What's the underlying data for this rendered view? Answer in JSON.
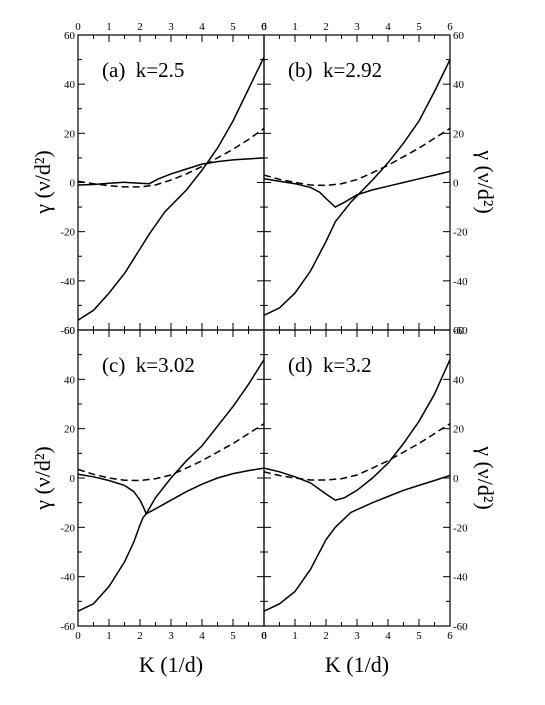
{
  "chart_data": [
    {
      "type": "line",
      "panel": "a",
      "label": "(a)  k=2.5",
      "xlabel": "",
      "ylabel": "γ  (ν/d²)",
      "xlim": [
        0,
        6
      ],
      "ylim": [
        -60,
        60
      ],
      "series": [
        {
          "style": "solid",
          "x": [
            0,
            0.5,
            1.0,
            1.5,
            2.0,
            2.3,
            2.8,
            3.5,
            4.0,
            4.5,
            5.0,
            6.0
          ],
          "y": [
            -56,
            -52,
            -45,
            -37,
            -27,
            -21,
            -12,
            -3,
            5,
            14,
            25,
            51
          ]
        },
        {
          "style": "solid",
          "x": [
            0,
            0.5,
            1.0,
            1.5,
            2.0,
            2.3,
            2.6,
            3.0,
            3.5,
            4.0,
            4.5,
            5.0,
            5.5,
            6.0
          ],
          "y": [
            -1,
            -0.8,
            -0.3,
            0.1,
            -0.3,
            -0.5,
            1.5,
            3.5,
            5.5,
            7.5,
            8.5,
            9.2,
            9.6,
            10
          ]
        },
        {
          "style": "dashed",
          "x": [
            0,
            0.5,
            1.0,
            1.5,
            2.0,
            2.5,
            3.0,
            3.5,
            4.0,
            4.5,
            5.0,
            5.5,
            6.0
          ],
          "y": [
            0.5,
            -0.5,
            -1.3,
            -1.8,
            -1.8,
            -1.0,
            1.0,
            3.5,
            6.5,
            10,
            13.5,
            17.5,
            22
          ]
        }
      ]
    },
    {
      "type": "line",
      "panel": "b",
      "label": "(b)  k=2.92",
      "xlabel": "",
      "ylabel": "γ  (ν/d²)",
      "xlim": [
        0,
        6
      ],
      "ylim": [
        -60,
        60
      ],
      "series": [
        {
          "style": "solid",
          "x": [
            0,
            0.5,
            1.0,
            1.5,
            2.0,
            2.3,
            2.8,
            3.5,
            4.0,
            4.5,
            5.0,
            5.5,
            6.0
          ],
          "y": [
            -54,
            -51,
            -45,
            -36,
            -24,
            -16,
            -8,
            1,
            8,
            16,
            25,
            37,
            50
          ]
        },
        {
          "style": "solid",
          "x": [
            0,
            0.5,
            1.0,
            1.5,
            1.8,
            2.0,
            2.3,
            2.6,
            3.0,
            3.5,
            4.0,
            4.5,
            5.0,
            5.5,
            6.0
          ],
          "y": [
            1.5,
            0.5,
            -0.5,
            -2,
            -4,
            -6.5,
            -10,
            -8,
            -5,
            -3,
            -1.5,
            0,
            1.5,
            3,
            4.5
          ]
        },
        {
          "style": "dashed",
          "x": [
            0,
            0.5,
            1.0,
            1.5,
            2.0,
            2.5,
            3.0,
            3.5,
            4.0,
            4.5,
            5.0,
            5.5,
            6.0
          ],
          "y": [
            3,
            1.3,
            0,
            -1,
            -1.2,
            -0.5,
            1.2,
            4,
            7,
            10.5,
            14,
            18,
            22
          ]
        }
      ]
    },
    {
      "type": "line",
      "panel": "c",
      "label": "(c)  k=3.02",
      "xlabel": "K  (1/d)",
      "ylabel": "γ  (ν/d²)",
      "xlim": [
        0,
        6
      ],
      "ylim": [
        -60,
        60
      ],
      "series": [
        {
          "style": "solid",
          "x": [
            0,
            0.5,
            1.0,
            1.5,
            1.8,
            2.0,
            2.1,
            2.2
          ],
          "y": [
            -54,
            -51,
            -44,
            -34,
            -26,
            -19,
            -16,
            -14.5
          ]
        },
        {
          "style": "solid",
          "x": [
            0,
            0.5,
            1.0,
            1.5,
            1.8,
            2.0,
            2.1,
            2.2
          ],
          "y": [
            1.5,
            0.5,
            -1,
            -3,
            -5.5,
            -9,
            -11.5,
            -14.5
          ]
        },
        {
          "style": "solid",
          "x": [
            2.2,
            2.5,
            3.0,
            3.5,
            4.0,
            4.5,
            5.0,
            5.5,
            6.0
          ],
          "y": [
            -14.5,
            -8,
            0,
            7,
            13,
            21,
            29,
            38,
            48
          ]
        },
        {
          "style": "solid",
          "x": [
            2.2,
            2.5,
            3.0,
            3.5,
            4.0,
            4.5,
            5.0,
            5.5,
            6.0
          ],
          "y": [
            -14.5,
            -12.5,
            -9,
            -5.5,
            -2.5,
            0,
            1.8,
            3,
            4
          ]
        },
        {
          "style": "dashed",
          "x": [
            0,
            0.5,
            1.0,
            1.5,
            2.0,
            2.5,
            3.0,
            3.5,
            4.0,
            4.5,
            5.0,
            5.5,
            6.0
          ],
          "y": [
            3.5,
            1.5,
            0,
            -0.9,
            -1,
            -0.3,
            1.2,
            4,
            7,
            10.5,
            14,
            18,
            22
          ]
        }
      ]
    },
    {
      "type": "line",
      "panel": "d",
      "label": "(d)  k=3.2",
      "xlabel": "K  (1/d)",
      "ylabel": "γ  (ν/d²)",
      "xlim": [
        0,
        6
      ],
      "ylim": [
        -60,
        60
      ],
      "series": [
        {
          "style": "solid",
          "x": [
            0,
            0.5,
            1.0,
            1.5,
            2.0,
            2.3,
            2.8,
            3.5,
            4.0,
            4.5,
            5.0,
            5.5,
            6.0
          ],
          "y": [
            -54,
            -51,
            -46,
            -37,
            -25,
            -20,
            -14,
            -10,
            -7.5,
            -5,
            -3,
            -1,
            1
          ]
        },
        {
          "style": "solid",
          "x": [
            0,
            0.5,
            1.0,
            1.5,
            2.0,
            2.3,
            2.6,
            3.0,
            3.5,
            4.0,
            4.5,
            5.0,
            5.5,
            6.0
          ],
          "y": [
            4,
            2.5,
            0.5,
            -2,
            -6.5,
            -9,
            -8,
            -5,
            0,
            6,
            14,
            23,
            34,
            48
          ]
        },
        {
          "style": "dashed",
          "x": [
            0,
            0.5,
            1.0,
            1.5,
            2.0,
            2.5,
            3.0,
            3.5,
            4.0,
            4.5,
            5.0,
            5.5,
            6.0
          ],
          "y": [
            2.5,
            1,
            0,
            -0.8,
            -0.8,
            -0.3,
            1.2,
            4,
            7,
            10.5,
            14,
            18,
            22
          ]
        }
      ]
    }
  ],
  "axes": {
    "x_ticks": [
      "0",
      "1",
      "2",
      "3",
      "4",
      "5",
      "6"
    ],
    "y_ticks": [
      "-60",
      "-40",
      "-20",
      "0",
      "20",
      "40",
      "60"
    ],
    "left_ylabel": "γ  (ν/d²)",
    "right_ylabel": "γ  (ν/d²)",
    "bottom_xlabel": "K  (1/d)"
  }
}
